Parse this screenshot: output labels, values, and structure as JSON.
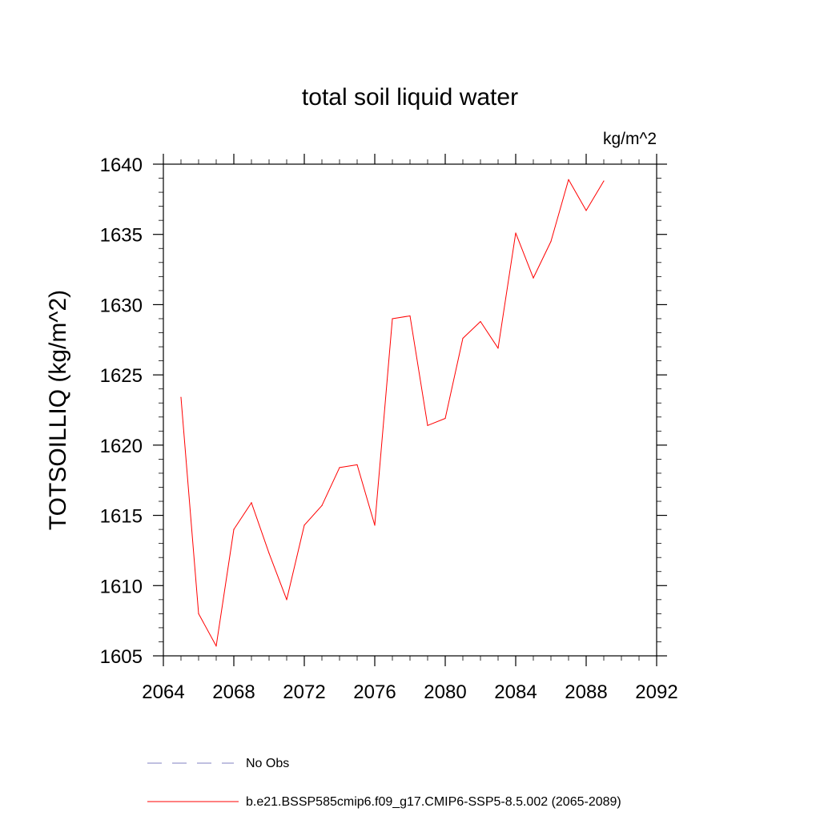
{
  "chart_data": {
    "type": "line",
    "title": "total soil liquid water",
    "units_label": "kg/m^2",
    "ylabel": "TOTSOILLIQ  (kg/m^2)",
    "xlabel": "",
    "xlim": [
      2064,
      2092
    ],
    "ylim": [
      1605,
      1640
    ],
    "xticks": [
      2064,
      2068,
      2072,
      2076,
      2080,
      2084,
      2088,
      2092
    ],
    "yticks": [
      1605,
      1610,
      1615,
      1620,
      1625,
      1630,
      1635,
      1640
    ],
    "xtick_labels": [
      "2064",
      "2068",
      "2072",
      "2076",
      "2080",
      "2084",
      "2088",
      "2092"
    ],
    "ytick_labels": [
      "1605",
      "1610",
      "1615",
      "1620",
      "1625",
      "1630",
      "1635",
      "1640"
    ],
    "grid": false,
    "legend_position": "bottom",
    "series": [
      {
        "name": "b.e21.BSSP585cmip6.f09_g17.CMIP6-SSP5-8.5.002 (2065-2089)",
        "color": "#ff0000",
        "style": "solid",
        "x": [
          2065,
          2066,
          2067,
          2068,
          2069,
          2070,
          2071,
          2072,
          2073,
          2074,
          2075,
          2076,
          2077,
          2078,
          2079,
          2080,
          2081,
          2082,
          2083,
          2084,
          2085,
          2086,
          2087,
          2088,
          2089
        ],
        "values": [
          1623.4,
          1608.0,
          1605.7,
          1614.0,
          1615.9,
          1612.3,
          1609.0,
          1614.3,
          1615.7,
          1618.4,
          1618.6,
          1614.3,
          1629.0,
          1629.2,
          1621.4,
          1621.9,
          1627.6,
          1628.8,
          1626.9,
          1635.1,
          1631.9,
          1634.5,
          1638.9,
          1636.7,
          1638.8
        ]
      },
      {
        "name": "No Obs",
        "color": "#8080c0",
        "style": "dashed",
        "x": [],
        "values": []
      }
    ]
  }
}
